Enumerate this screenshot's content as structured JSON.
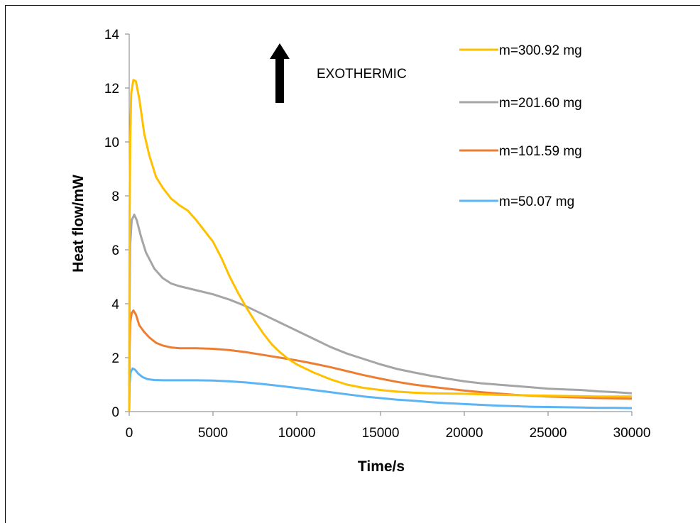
{
  "chart_data": {
    "type": "line",
    "title": "",
    "xlabel": "Time/s",
    "ylabel": "Heat flow/mW",
    "xlim": [
      0,
      30000
    ],
    "ylim": [
      0,
      14
    ],
    "xticks": [
      0,
      5000,
      10000,
      15000,
      20000,
      25000,
      30000
    ],
    "yticks": [
      0,
      2,
      4,
      6,
      8,
      10,
      12,
      14
    ],
    "grid": false,
    "legend_position": "top-right",
    "annotation": {
      "text": "EXOTHERMIC",
      "arrow": "up"
    },
    "series": [
      {
        "name": "m=300.92 mg",
        "color": "#FFC000",
        "points": [
          [
            0,
            0
          ],
          [
            20,
            7
          ],
          [
            60,
            10
          ],
          [
            120,
            11.8
          ],
          [
            250,
            12.3
          ],
          [
            400,
            12.25
          ],
          [
            600,
            11.6
          ],
          [
            900,
            10.3
          ],
          [
            1200,
            9.5
          ],
          [
            1600,
            8.7
          ],
          [
            2000,
            8.3
          ],
          [
            2500,
            7.9
          ],
          [
            3000,
            7.65
          ],
          [
            3500,
            7.45
          ],
          [
            4000,
            7.1
          ],
          [
            4500,
            6.7
          ],
          [
            5000,
            6.3
          ],
          [
            5500,
            5.7
          ],
          [
            6000,
            5.0
          ],
          [
            6500,
            4.4
          ],
          [
            7000,
            3.85
          ],
          [
            7500,
            3.35
          ],
          [
            8000,
            2.9
          ],
          [
            8500,
            2.5
          ],
          [
            9000,
            2.2
          ],
          [
            9500,
            1.95
          ],
          [
            10000,
            1.75
          ],
          [
            11000,
            1.45
          ],
          [
            12000,
            1.2
          ],
          [
            13000,
            1.0
          ],
          [
            14000,
            0.88
          ],
          [
            15000,
            0.8
          ],
          [
            16000,
            0.74
          ],
          [
            17000,
            0.7
          ],
          [
            18000,
            0.68
          ],
          [
            20000,
            0.66
          ],
          [
            22000,
            0.62
          ],
          [
            24000,
            0.6
          ],
          [
            26000,
            0.58
          ],
          [
            28000,
            0.56
          ],
          [
            30000,
            0.56
          ]
        ]
      },
      {
        "name": "m=201.60 mg",
        "color": "#A5A5A5",
        "points": [
          [
            0,
            0
          ],
          [
            20,
            4
          ],
          [
            60,
            6.2
          ],
          [
            150,
            7.1
          ],
          [
            300,
            7.3
          ],
          [
            450,
            7.1
          ],
          [
            700,
            6.5
          ],
          [
            1000,
            5.9
          ],
          [
            1500,
            5.3
          ],
          [
            2000,
            4.95
          ],
          [
            2500,
            4.75
          ],
          [
            3000,
            4.65
          ],
          [
            4000,
            4.5
          ],
          [
            5000,
            4.35
          ],
          [
            6000,
            4.15
          ],
          [
            7000,
            3.9
          ],
          [
            8000,
            3.6
          ],
          [
            9000,
            3.3
          ],
          [
            10000,
            3.0
          ],
          [
            11000,
            2.7
          ],
          [
            12000,
            2.4
          ],
          [
            13000,
            2.15
          ],
          [
            14000,
            1.95
          ],
          [
            15000,
            1.75
          ],
          [
            16000,
            1.58
          ],
          [
            17000,
            1.45
          ],
          [
            18000,
            1.33
          ],
          [
            19000,
            1.22
          ],
          [
            20000,
            1.12
          ],
          [
            21000,
            1.05
          ],
          [
            22000,
            1.0
          ],
          [
            23000,
            0.95
          ],
          [
            24000,
            0.9
          ],
          [
            25000,
            0.85
          ],
          [
            26000,
            0.82
          ],
          [
            27000,
            0.8
          ],
          [
            28000,
            0.75
          ],
          [
            29000,
            0.72
          ],
          [
            30000,
            0.68
          ]
        ]
      },
      {
        "name": "m=101.59 mg",
        "color": "#ED7D31",
        "points": [
          [
            0,
            0
          ],
          [
            20,
            2.2
          ],
          [
            60,
            3.3
          ],
          [
            150,
            3.65
          ],
          [
            250,
            3.75
          ],
          [
            400,
            3.6
          ],
          [
            600,
            3.2
          ],
          [
            900,
            2.95
          ],
          [
            1200,
            2.75
          ],
          [
            1600,
            2.55
          ],
          [
            2000,
            2.45
          ],
          [
            2500,
            2.38
          ],
          [
            3000,
            2.35
          ],
          [
            4000,
            2.35
          ],
          [
            5000,
            2.33
          ],
          [
            6000,
            2.28
          ],
          [
            7000,
            2.2
          ],
          [
            8000,
            2.1
          ],
          [
            9000,
            2.0
          ],
          [
            10000,
            1.9
          ],
          [
            11000,
            1.78
          ],
          [
            12000,
            1.65
          ],
          [
            13000,
            1.5
          ],
          [
            14000,
            1.35
          ],
          [
            15000,
            1.22
          ],
          [
            16000,
            1.1
          ],
          [
            17000,
            1.0
          ],
          [
            18000,
            0.92
          ],
          [
            19000,
            0.85
          ],
          [
            20000,
            0.78
          ],
          [
            21000,
            0.72
          ],
          [
            22000,
            0.67
          ],
          [
            23000,
            0.62
          ],
          [
            24000,
            0.59
          ],
          [
            25000,
            0.56
          ],
          [
            26000,
            0.54
          ],
          [
            27000,
            0.52
          ],
          [
            28000,
            0.5
          ],
          [
            29000,
            0.49
          ],
          [
            30000,
            0.48
          ]
        ]
      },
      {
        "name": "m=50.07 mg",
        "color": "#5BB4F4",
        "points": [
          [
            0,
            0
          ],
          [
            20,
            1.0
          ],
          [
            80,
            1.45
          ],
          [
            200,
            1.6
          ],
          [
            350,
            1.55
          ],
          [
            550,
            1.4
          ],
          [
            800,
            1.28
          ],
          [
            1100,
            1.2
          ],
          [
            1500,
            1.17
          ],
          [
            2000,
            1.16
          ],
          [
            3000,
            1.16
          ],
          [
            4000,
            1.16
          ],
          [
            5000,
            1.15
          ],
          [
            6000,
            1.12
          ],
          [
            7000,
            1.08
          ],
          [
            8000,
            1.02
          ],
          [
            9000,
            0.95
          ],
          [
            10000,
            0.88
          ],
          [
            11000,
            0.8
          ],
          [
            12000,
            0.72
          ],
          [
            13000,
            0.64
          ],
          [
            14000,
            0.56
          ],
          [
            15000,
            0.5
          ],
          [
            16000,
            0.44
          ],
          [
            17000,
            0.4
          ],
          [
            18000,
            0.35
          ],
          [
            19000,
            0.31
          ],
          [
            20000,
            0.28
          ],
          [
            21000,
            0.25
          ],
          [
            22000,
            0.22
          ],
          [
            23000,
            0.2
          ],
          [
            24000,
            0.18
          ],
          [
            25000,
            0.17
          ],
          [
            26000,
            0.16
          ],
          [
            27000,
            0.15
          ],
          [
            28000,
            0.14
          ],
          [
            29000,
            0.14
          ],
          [
            30000,
            0.13
          ]
        ]
      }
    ]
  }
}
